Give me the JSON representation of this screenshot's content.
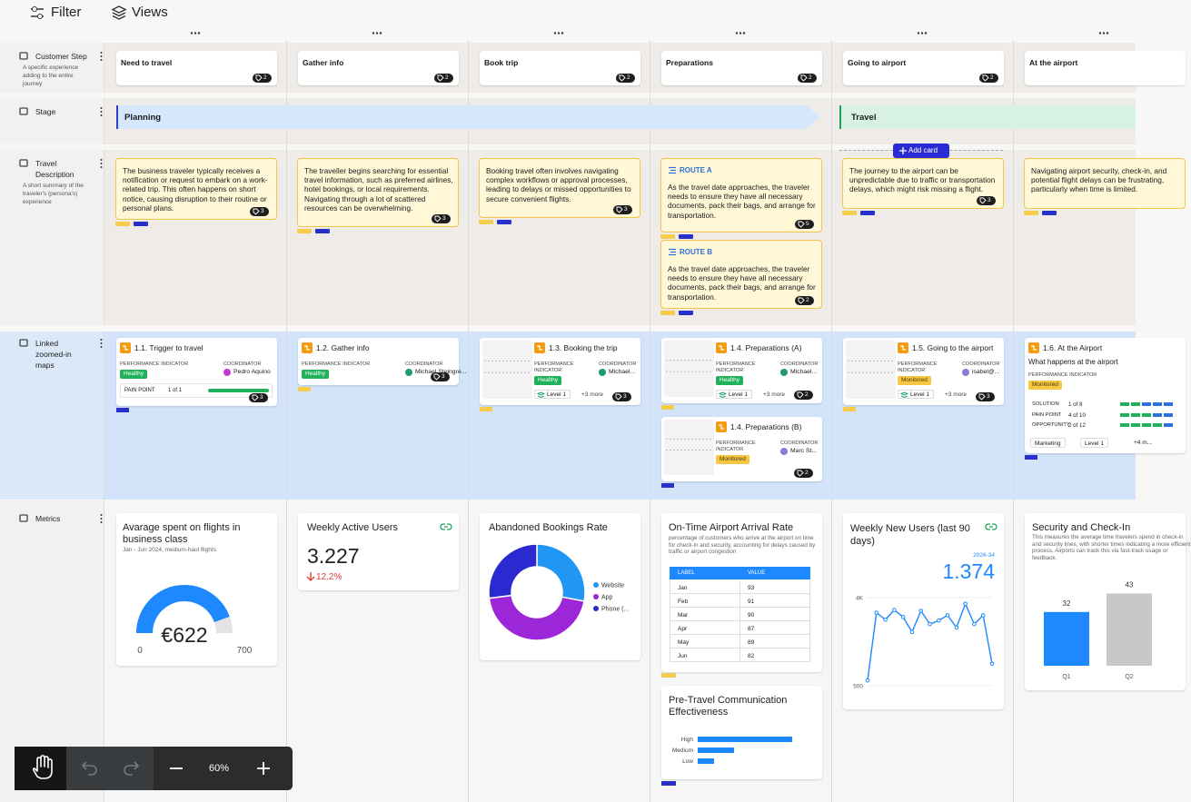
{
  "toolbar": {
    "filter": "Filter",
    "views": "Views"
  },
  "rows": [
    {
      "label": "Customer Step",
      "description": "A specific experience adding to the entire journey"
    },
    {
      "label": "Stage"
    },
    {
      "label": "Travel Description",
      "description": "A short summary of the traveler's (persona's) experience"
    },
    {
      "label": "Linked zoomed-in maps"
    },
    {
      "label": "Metrics"
    }
  ],
  "steps": [
    {
      "name": "Need to travel",
      "count": 2
    },
    {
      "name": "Gather info",
      "count": 2
    },
    {
      "name": "Book trip",
      "count": 2
    },
    {
      "name": "Preparations",
      "count": 2
    },
    {
      "name": "Going to airport",
      "count": 2
    },
    {
      "name": "At the airport"
    }
  ],
  "stages": [
    "Planning",
    "Travel"
  ],
  "add_card": "Add card",
  "descriptions": [
    [
      {
        "text": "The business traveler typically receives a notification or request to embark on a work-related trip. This often happens on short notice, causing disruption to their routine or personal plans.",
        "count": 3
      }
    ],
    [
      {
        "text": "The traveller begins searching for essential travel information, such as preferred airlines, hotel bookings, or local requirements. Navigating through a lot of scattered resources can be overwhelming.",
        "count": 3
      }
    ],
    [
      {
        "text": "Booking travel often involves navigating complex workflows or approval processes, leading to delays or missed opportunities to secure convenient flights.",
        "count": 3
      }
    ],
    [
      {
        "title": "ROUTE A",
        "text": "As the travel date approaches, the traveler needs to ensure they have all necessary documents, pack their bags, and arrange for transportation.",
        "count": 5
      },
      {
        "title": "ROUTE B",
        "text": "As the travel date approaches, the traveler needs to ensure they have all necessary documents, pack their bags, and arrange for transportation.",
        "count": 2
      }
    ],
    [
      {
        "text": "The journey to the airport can be unpredictable due to traffic or transportation delays, which might risk missing a flight.",
        "count": 3
      }
    ],
    [
      {
        "text": "Navigating airport security, check-in, and potential flight delays can be frustrating, particularly when time is limited."
      }
    ]
  ],
  "labels": {
    "performance_indicator": "PERFORMANCE INDICATOR",
    "coordinator": "COORDINATOR"
  },
  "maps": [
    [
      {
        "title": "1.1. Trigger to travel",
        "status": "Healthy",
        "coordinator": "Pedro Aquino",
        "pain_point": {
          "label": "PAIN POINT",
          "value": "1 of 1"
        },
        "count": 3
      }
    ],
    [
      {
        "title": "1.2. Gather info",
        "status": "Healthy",
        "coordinator": "Michael Steingre...",
        "count": 3
      }
    ],
    [
      {
        "title": "1.3. Booking the trip",
        "status": "Healthy",
        "coordinator": "Michael...",
        "level": "Level 1",
        "more": "+3 more",
        "count": 3
      }
    ],
    [
      {
        "title": "1.4. Preparations (A)",
        "status": "Healthy",
        "coordinator": "Michael...",
        "level": "Level 1",
        "more": "+3 more",
        "count": 2
      },
      {
        "title": "1.4. Preparations (B)",
        "status": "Monitored",
        "coordinator": "Marc St...",
        "count": 2
      }
    ],
    [
      {
        "title": "1.5. Going to the airport",
        "status": "Monitored",
        "coordinator": "isabel@...",
        "level": "Level 1",
        "more": "+3 more",
        "count": 3
      }
    ],
    [
      {
        "title": "1.6. At the Airport",
        "subtitle": "What happens at the airport",
        "status": "Monitored",
        "stats": [
          {
            "label": "SOLUTION",
            "value": "1 of 8"
          },
          {
            "label": "PAIN POINT",
            "value": "4 of 10"
          },
          {
            "label": "OPPORTUNITY",
            "value": "2 of 12"
          }
        ],
        "tags": [
          "Marketing",
          "Level 1",
          "+4 m..."
        ]
      }
    ]
  ],
  "metrics": [
    [
      {
        "type": "gauge",
        "title": "Avarage spent on flights in business class",
        "subtitle": "Jan - Jun 2024, medium-haul flights",
        "value": 622,
        "value_label": "€622",
        "min": 0,
        "max": 700,
        "color": "#1e88ff"
      }
    ],
    [
      {
        "type": "kpi",
        "title": "Weekly Active Users",
        "value": 3227,
        "value_label": "3.227",
        "change": -12.2,
        "change_label": "12.2%"
      }
    ],
    [
      {
        "type": "donut",
        "title": "Abandoned Bookings Rate",
        "categories": [
          "Website",
          "App",
          "Phone (..."
        ],
        "values": [
          28,
          45,
          27
        ],
        "colors": [
          "#2196f3",
          "#9c27d9",
          "#2a2ad0"
        ]
      }
    ],
    [
      {
        "type": "table",
        "title": "On-Time Airport Arrival Rate",
        "description": "percentage of customers who arrive at the airport on time for check-in and security, accounting for delays caused by traffic or airport congestion",
        "columns": [
          "LABEL",
          "VALUE"
        ],
        "rows": [
          [
            "Jan",
            93
          ],
          [
            "Feb",
            91
          ],
          [
            "Mar",
            90
          ],
          [
            "Apr",
            87
          ],
          [
            "May",
            89
          ],
          [
            "Jun",
            82
          ]
        ]
      },
      {
        "type": "hbar",
        "title": "Pre-Travel Communication Effectiveness",
        "categories": [
          "High",
          "Medium",
          "Low"
        ],
        "values": [
          100,
          38,
          17
        ],
        "xlim": [
          0,
          100
        ],
        "color": "#1e88ff"
      }
    ],
    [
      {
        "type": "line",
        "title": "Weekly New Users (last 90 days)",
        "period": "2026-34",
        "value": 1374,
        "value_label": "1.374",
        "values": [
          710,
          3405,
          3125,
          3510,
          3230,
          2635,
          3475,
          2950,
          3090,
          3300,
          2810,
          3755,
          2950,
          3300,
          1374
        ],
        "ylim": [
          500,
          4000
        ],
        "yticks": [
          {
            "value": 4000,
            "label": "4K"
          },
          500
        ],
        "color": "#1e88ff"
      }
    ],
    [
      {
        "type": "bar",
        "title": "Security and Check-In",
        "description": "This measures the average time travelers spend in check-in and security lines, with shorter times indicating a more efficient process. Airports can track this via fast-track usage or feedback.",
        "categories": [
          "Q1",
          "Q2"
        ],
        "values": [
          32,
          43
        ],
        "colors": [
          "#1e88ff",
          "#c8c8c8"
        ]
      }
    ]
  ],
  "zoom": "60%"
}
